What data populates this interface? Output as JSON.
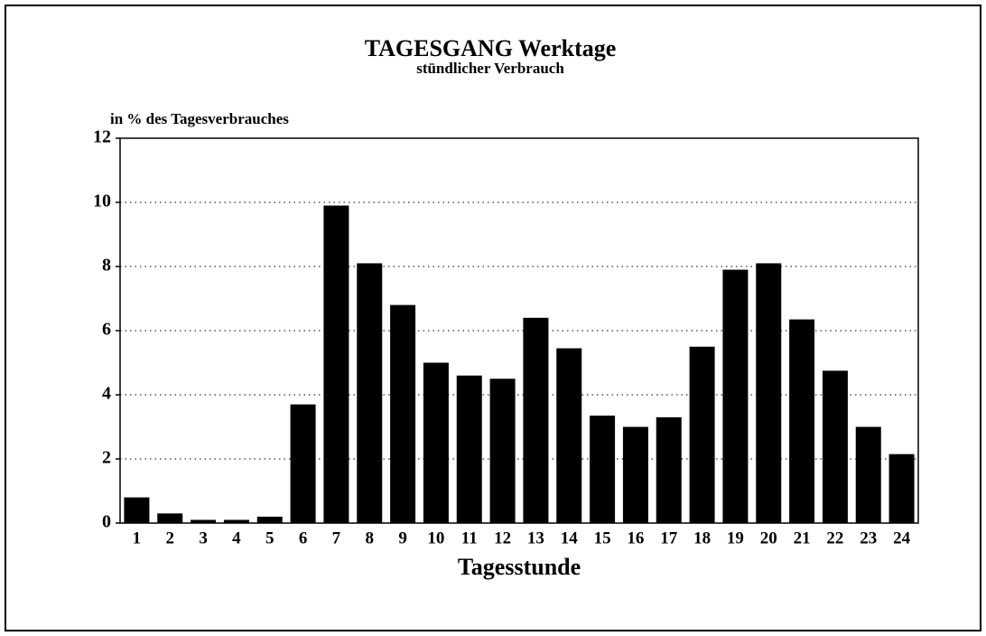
{
  "chart_data": {
    "type": "bar",
    "title": "TAGESGANG Werktage",
    "subtitle": "stündlicher Verbrauch",
    "y_label": "in % des Tagesverbrauches",
    "x_label": "Tagesstunde",
    "categories": [
      "1",
      "2",
      "3",
      "4",
      "5",
      "6",
      "7",
      "8",
      "9",
      "10",
      "11",
      "12",
      "13",
      "14",
      "15",
      "16",
      "17",
      "18",
      "19",
      "20",
      "21",
      "22",
      "23",
      "24"
    ],
    "values": [
      0.8,
      0.3,
      0.1,
      0.1,
      0.2,
      3.7,
      9.9,
      8.1,
      6.8,
      5.0,
      4.6,
      4.5,
      6.4,
      5.45,
      3.35,
      3.0,
      3.3,
      5.5,
      7.9,
      8.1,
      6.35,
      4.75,
      3.0,
      2.15
    ],
    "color": "#000000",
    "ylim": [
      0,
      12
    ],
    "yticks": [
      0,
      2,
      4,
      6,
      8,
      10,
      12
    ],
    "grid": true
  }
}
